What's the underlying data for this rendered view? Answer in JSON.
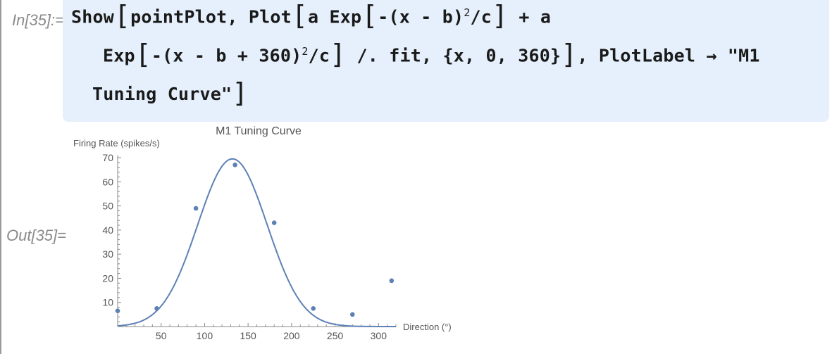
{
  "cell": {
    "in_label": "In[35]:=",
    "out_label": "Out[35]="
  },
  "code": {
    "line1_a": "Show",
    "line1_b": "pointPlot, Plot",
    "line1_c": "a Exp",
    "line1_d": "-(x - b)",
    "line1_e": "/c",
    "line1_f": " + a",
    "line2_a": "Exp",
    "line2_b": "-(x - b + 360)",
    "line2_c": "/c",
    "line2_d": " /. fit, {x, 0, 360}",
    "line2_e": ", PlotLabel → \"M1",
    "line3_a": "Tuning Curve\"",
    "exponent": "2"
  },
  "chart_data": {
    "type": "scatter",
    "title": "M1 Tuning Curve",
    "xlabel": "Direction (°)",
    "ylabel": "Firing Rate (spikes/s)",
    "xlim": [
      0,
      320
    ],
    "ylim": [
      0,
      70
    ],
    "xticks": [
      50,
      100,
      150,
      200,
      250,
      300
    ],
    "yticks": [
      10,
      20,
      30,
      40,
      50,
      60,
      70
    ],
    "series": [
      {
        "kind": "points",
        "x": [
          0,
          45,
          90,
          135,
          180,
          225,
          270,
          315
        ],
        "y": [
          6.5,
          7.5,
          49,
          67,
          43,
          7.5,
          5,
          19
        ]
      },
      {
        "kind": "fit",
        "model": "a Exp[-(x - b)^2/c] + a Exp[-(x - b + 360)^2/c]",
        "params": {
          "a": 69.5,
          "b": 132,
          "c": 3200
        },
        "domain": [
          0,
          320
        ]
      }
    ],
    "colors": {
      "series": "#5e81b5",
      "axis": "#888888",
      "text": "#555555"
    }
  }
}
